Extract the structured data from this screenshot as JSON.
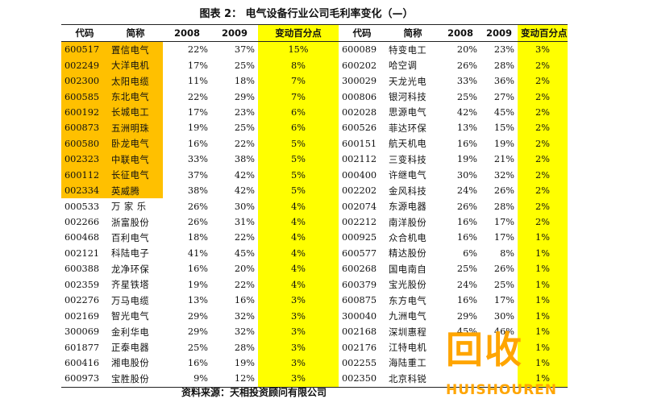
{
  "title": "图表 2：  电气设备行业公司毛利率变化（—）",
  "source": "资料来源：天相投资顾问有限公司",
  "watermark": {
    "mark": "回收",
    "word": "HUISHOUREN",
    "color": "#ffa500"
  },
  "colors": {
    "highlight": "#ffc000",
    "change_column": "#ffff00"
  },
  "columns": [
    "代码",
    "简称",
    "2008",
    "2009",
    "变动百分点",
    "代码",
    "简称",
    "2008",
    "2009",
    "变动百分点"
  ],
  "rows": [
    [
      "600517",
      "置信电气",
      "22%",
      "37%",
      "15%",
      "600089",
      "特变电工",
      "20%",
      "23%",
      "3%"
    ],
    [
      "002249",
      "大洋电机",
      "17%",
      "25%",
      "8%",
      "600202",
      "哈空调",
      "26%",
      "28%",
      "2%"
    ],
    [
      "002300",
      "太阳电缆",
      "11%",
      "18%",
      "7%",
      "300029",
      "天龙光电",
      "33%",
      "36%",
      "2%"
    ],
    [
      "600585",
      "东北电气",
      "22%",
      "29%",
      "7%",
      "000806",
      "银河科技",
      "25%",
      "27%",
      "2%"
    ],
    [
      "600192",
      "长城电工",
      "17%",
      "23%",
      "6%",
      "002028",
      "思源电气",
      "42%",
      "45%",
      "2%"
    ],
    [
      "600873",
      "五洲明珠",
      "19%",
      "25%",
      "6%",
      "600526",
      "菲达环保",
      "13%",
      "15%",
      "2%"
    ],
    [
      "600580",
      "卧龙电气",
      "16%",
      "22%",
      "5%",
      "600151",
      "航天机电",
      "16%",
      "19%",
      "2%"
    ],
    [
      "002323",
      "中联电气",
      "33%",
      "38%",
      "5%",
      "002112",
      "三变科技",
      "19%",
      "21%",
      "2%"
    ],
    [
      "600112",
      "长征电气",
      "37%",
      "42%",
      "5%",
      "000400",
      "许继电气",
      "30%",
      "32%",
      "2%"
    ],
    [
      "002334",
      "英威腾",
      "38%",
      "42%",
      "5%",
      "002202",
      "金风科技",
      "24%",
      "26%",
      "2%"
    ],
    [
      "000533",
      "万 家 乐",
      "26%",
      "30%",
      "4%",
      "002074",
      "东源电器",
      "26%",
      "28%",
      "2%"
    ],
    [
      "002266",
      "浙富股份",
      "26%",
      "31%",
      "4%",
      "002212",
      "南洋股份",
      "16%",
      "17%",
      "2%"
    ],
    [
      "600468",
      "百利电气",
      "18%",
      "22%",
      "4%",
      "000925",
      "众合机电",
      "16%",
      "17%",
      "1%"
    ],
    [
      "002121",
      "科陆电子",
      "41%",
      "45%",
      "4%",
      "600577",
      "精达股份",
      "6%",
      "8%",
      "1%"
    ],
    [
      "600388",
      "龙净环保",
      "16%",
      "20%",
      "4%",
      "600268",
      "国电南自",
      "25%",
      "26%",
      "1%"
    ],
    [
      "002359",
      "齐星铁塔",
      "19%",
      "22%",
      "4%",
      "600379",
      "宝光股份",
      "24%",
      "25%",
      "1%"
    ],
    [
      "002276",
      "万马电缆",
      "13%",
      "16%",
      "3%",
      "600875",
      "东方电气",
      "16%",
      "17%",
      "1%"
    ],
    [
      "002169",
      "智光电气",
      "29%",
      "32%",
      "3%",
      "300040",
      "九洲电气",
      "29%",
      "30%",
      "1%"
    ],
    [
      "300069",
      "金利华电",
      "29%",
      "32%",
      "3%",
      "002168",
      "深圳惠程",
      "45%",
      "46%",
      "1%"
    ],
    [
      "601877",
      "正泰电器",
      "25%",
      "28%",
      "3%",
      "002176",
      "江特电机",
      "",
      "",
      "1%"
    ],
    [
      "600416",
      "湘电股份",
      "16%",
      "19%",
      "3%",
      "002255",
      "海陆重工",
      "",
      "",
      "1%"
    ],
    [
      "600973",
      "宝胜股份",
      "9%",
      "12%",
      "3%",
      "002350",
      "北京科锐",
      "",
      "",
      "1%"
    ]
  ]
}
